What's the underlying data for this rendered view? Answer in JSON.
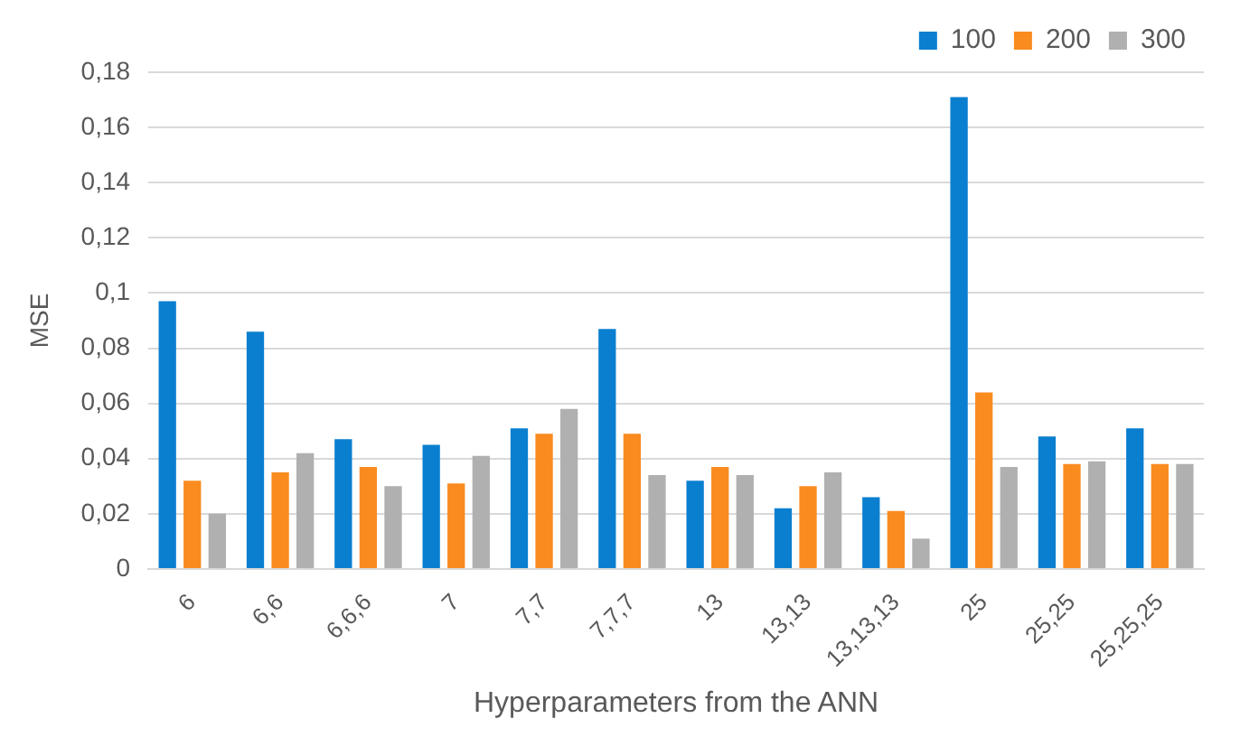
{
  "chart_data": {
    "type": "bar",
    "xlabel": "Hyperparameters from the ANN",
    "ylabel": "MSE",
    "categories": [
      "6",
      "6,6",
      "6,6,6",
      "7",
      "7,7",
      "7,7,7",
      "13",
      "13,13",
      "13,13,13",
      "25",
      "25,25",
      "25,25,25"
    ],
    "series": [
      {
        "name": "100",
        "color": "#0a7fd0",
        "values": [
          0.097,
          0.086,
          0.047,
          0.045,
          0.051,
          0.087,
          0.032,
          0.022,
          0.026,
          0.171,
          0.048,
          0.051
        ]
      },
      {
        "name": "200",
        "color": "#f98b1f",
        "values": [
          0.032,
          0.035,
          0.037,
          0.031,
          0.049,
          0.049,
          0.037,
          0.03,
          0.021,
          0.064,
          0.038,
          0.038
        ]
      },
      {
        "name": "300",
        "color": "#b0b0b0",
        "values": [
          0.02,
          0.042,
          0.03,
          0.041,
          0.058,
          0.034,
          0.034,
          0.035,
          0.011,
          0.037,
          0.039,
          0.038
        ]
      }
    ],
    "ylim": [
      0,
      0.18
    ],
    "yticks": [
      {
        "value": 0,
        "label": "0"
      },
      {
        "value": 0.02,
        "label": "0,02"
      },
      {
        "value": 0.04,
        "label": "0,04"
      },
      {
        "value": 0.06,
        "label": "0,06"
      },
      {
        "value": 0.08,
        "label": "0,08"
      },
      {
        "value": 0.1,
        "label": "0,1"
      },
      {
        "value": 0.12,
        "label": "0,12"
      },
      {
        "value": 0.14,
        "label": "0,14"
      },
      {
        "value": 0.16,
        "label": "0,16"
      },
      {
        "value": 0.18,
        "label": "0,18"
      }
    ],
    "grid": "y",
    "legend": "top right"
  }
}
